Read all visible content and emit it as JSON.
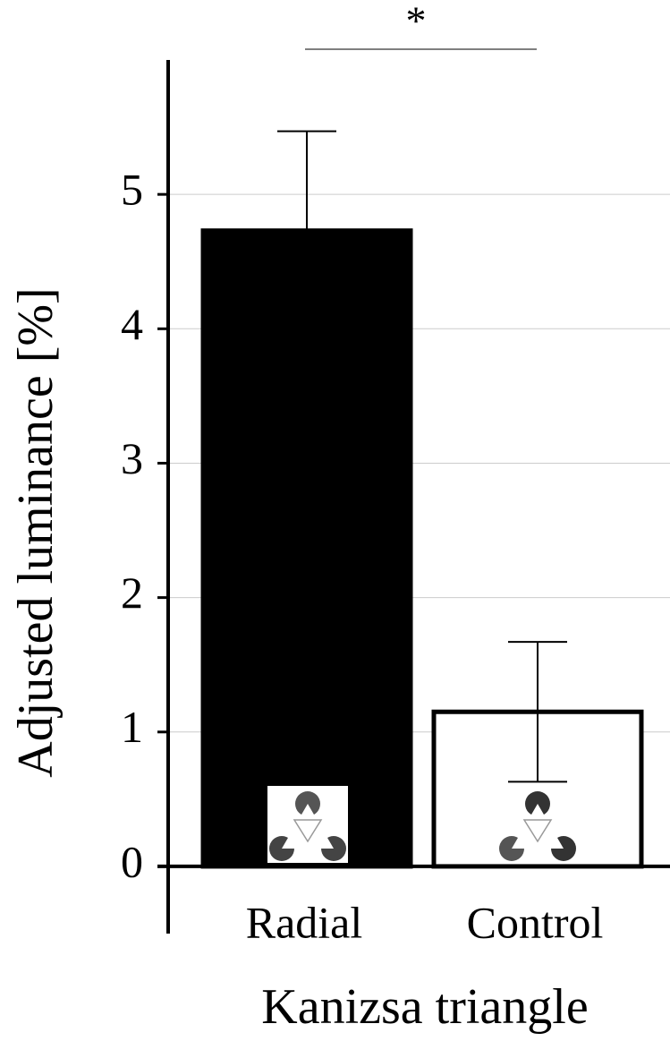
{
  "chart_data": {
    "type": "bar",
    "y_label": "Adjusted luminance [%]",
    "x_label": "Kanizsa triangle",
    "categories": [
      "Radial",
      "Control"
    ],
    "values": [
      4.73,
      1.15
    ],
    "errors": [
      0.74,
      0.52
    ],
    "colors": [
      "#000000",
      "#ffffff"
    ],
    "ylim": [
      -0.5,
      6
    ],
    "yticks": [
      0,
      1,
      2,
      3,
      4,
      5
    ],
    "grid": true,
    "annotation": "*"
  }
}
